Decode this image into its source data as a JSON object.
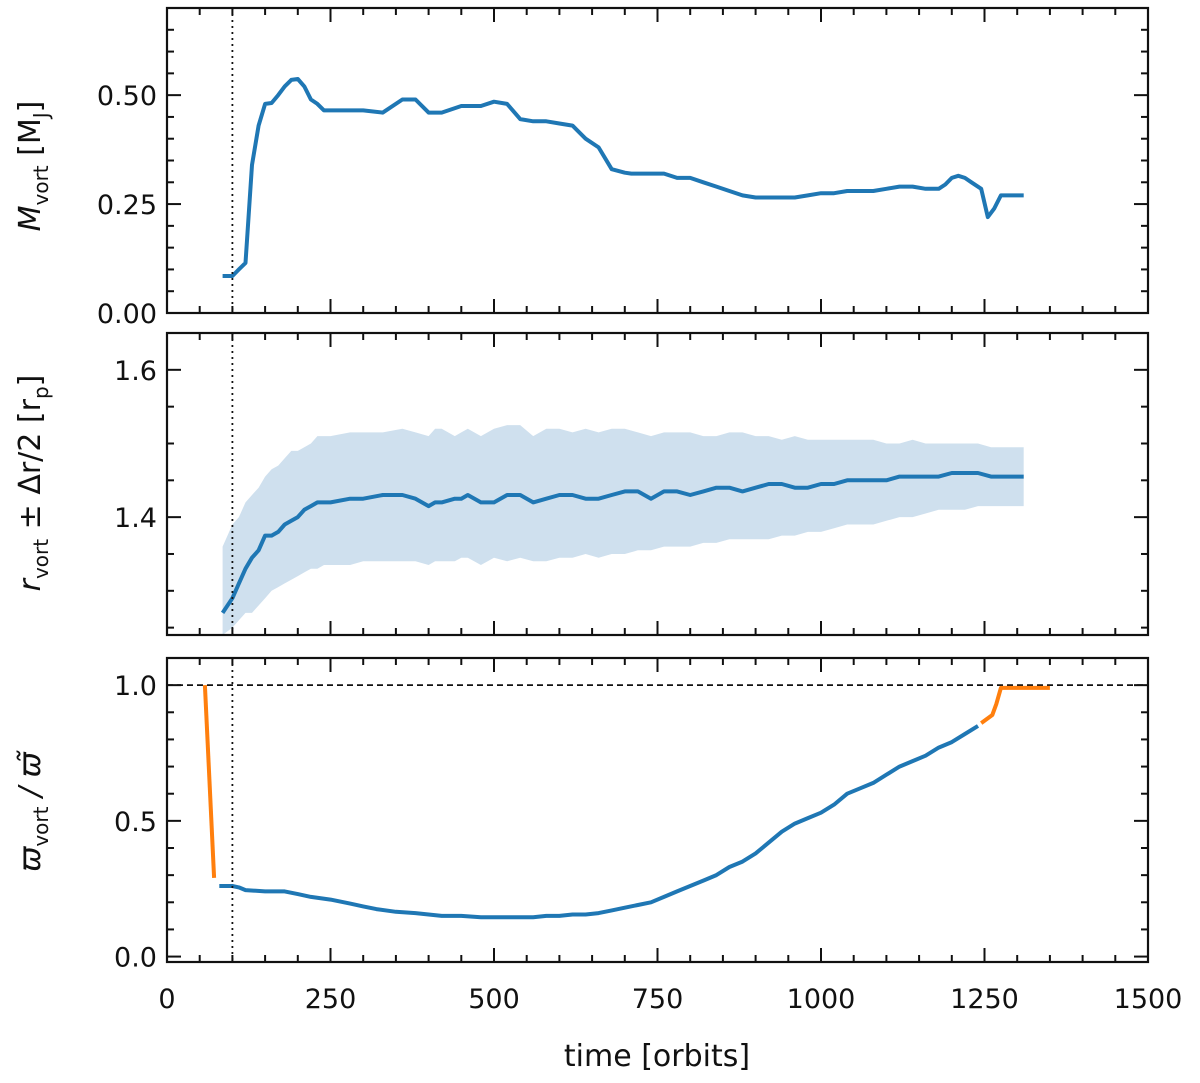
{
  "chart_data": [
    {
      "type": "line",
      "panel": "top",
      "ylabel_main": "M",
      "ylabel_sub": "vort",
      "ylabel_unit_open": "[M",
      "ylabel_unit_sub": "J",
      "ylabel_unit_close": "]",
      "xlim": [
        0,
        1500
      ],
      "ylim": [
        0,
        0.7
      ],
      "yticks": [
        0.0,
        0.25,
        0.5
      ],
      "ytick_labels": [
        "0.00",
        "0.25",
        "0.50"
      ],
      "vline_x": 100,
      "series": [
        {
          "name": "M_vort",
          "color": "#1f77b4",
          "x": [
            85,
            100,
            110,
            120,
            130,
            140,
            150,
            160,
            170,
            180,
            190,
            200,
            210,
            220,
            230,
            240,
            250,
            270,
            300,
            330,
            360,
            380,
            400,
            420,
            450,
            480,
            500,
            520,
            540,
            560,
            580,
            600,
            620,
            640,
            660,
            680,
            700,
            710,
            720,
            740,
            760,
            780,
            800,
            820,
            840,
            860,
            880,
            900,
            920,
            940,
            960,
            980,
            1000,
            1020,
            1040,
            1060,
            1080,
            1100,
            1120,
            1140,
            1160,
            1180,
            1190,
            1200,
            1210,
            1220,
            1230,
            1245,
            1255,
            1265,
            1275,
            1290,
            1310
          ],
          "values": [
            0.085,
            0.085,
            0.1,
            0.115,
            0.34,
            0.43,
            0.48,
            0.482,
            0.5,
            0.52,
            0.535,
            0.537,
            0.52,
            0.49,
            0.48,
            0.465,
            0.465,
            0.465,
            0.465,
            0.46,
            0.49,
            0.49,
            0.46,
            0.46,
            0.475,
            0.475,
            0.485,
            0.48,
            0.445,
            0.44,
            0.44,
            0.435,
            0.43,
            0.4,
            0.38,
            0.33,
            0.322,
            0.32,
            0.32,
            0.32,
            0.32,
            0.31,
            0.31,
            0.3,
            0.29,
            0.28,
            0.27,
            0.265,
            0.265,
            0.265,
            0.265,
            0.27,
            0.275,
            0.275,
            0.28,
            0.28,
            0.28,
            0.285,
            0.29,
            0.29,
            0.285,
            0.285,
            0.295,
            0.31,
            0.315,
            0.31,
            0.3,
            0.285,
            0.22,
            0.24,
            0.27,
            0.27,
            0.27
          ]
        }
      ]
    },
    {
      "type": "line",
      "panel": "middle",
      "ylabel_main": "r",
      "ylabel_sub": "vort",
      "ylabel_rest": " ± Δr/2 [r",
      "ylabel_unit_sub": "p",
      "ylabel_unit_close": "]",
      "xlim": [
        0,
        1500
      ],
      "ylim": [
        1.24,
        1.65
      ],
      "yticks": [
        1.4,
        1.6
      ],
      "ytick_labels": [
        "1.4",
        "1.6"
      ],
      "vline_x": 100,
      "series": [
        {
          "name": "r_vort",
          "color": "#1f77b4",
          "x": [
            85,
            100,
            110,
            120,
            130,
            140,
            150,
            160,
            170,
            180,
            190,
            200,
            210,
            220,
            230,
            240,
            250,
            280,
            300,
            330,
            360,
            380,
            400,
            410,
            420,
            440,
            450,
            460,
            480,
            500,
            520,
            540,
            560,
            580,
            600,
            620,
            640,
            660,
            680,
            700,
            720,
            740,
            760,
            780,
            800,
            820,
            840,
            860,
            880,
            900,
            920,
            940,
            960,
            980,
            1000,
            1020,
            1040,
            1060,
            1080,
            1100,
            1120,
            1140,
            1160,
            1180,
            1200,
            1220,
            1240,
            1260,
            1280,
            1310
          ],
          "values": [
            1.27,
            1.29,
            1.31,
            1.33,
            1.345,
            1.355,
            1.375,
            1.375,
            1.38,
            1.39,
            1.395,
            1.4,
            1.41,
            1.415,
            1.42,
            1.42,
            1.42,
            1.425,
            1.425,
            1.43,
            1.43,
            1.425,
            1.415,
            1.42,
            1.42,
            1.425,
            1.425,
            1.43,
            1.42,
            1.42,
            1.43,
            1.43,
            1.42,
            1.425,
            1.43,
            1.43,
            1.425,
            1.425,
            1.43,
            1.435,
            1.435,
            1.425,
            1.435,
            1.435,
            1.43,
            1.435,
            1.44,
            1.44,
            1.435,
            1.44,
            1.445,
            1.445,
            1.44,
            1.44,
            1.445,
            1.445,
            1.45,
            1.45,
            1.45,
            1.45,
            1.455,
            1.455,
            1.455,
            1.455,
            1.46,
            1.46,
            1.46,
            1.455,
            1.455,
            1.455
          ]
        }
      ],
      "band": {
        "name": "r_vort ± Δr/2",
        "color": "#cfe0ee",
        "x": [
          85,
          100,
          110,
          120,
          130,
          140,
          150,
          160,
          170,
          180,
          190,
          200,
          210,
          220,
          230,
          240,
          250,
          280,
          300,
          330,
          360,
          380,
          400,
          410,
          420,
          440,
          450,
          460,
          480,
          500,
          520,
          540,
          560,
          580,
          600,
          620,
          640,
          660,
          680,
          700,
          720,
          740,
          760,
          780,
          800,
          820,
          840,
          860,
          880,
          900,
          920,
          940,
          960,
          980,
          1000,
          1020,
          1040,
          1060,
          1080,
          1100,
          1120,
          1140,
          1160,
          1180,
          1200,
          1220,
          1240,
          1260,
          1280,
          1310
        ],
        "upper": [
          1.36,
          1.39,
          1.4,
          1.42,
          1.43,
          1.44,
          1.455,
          1.465,
          1.47,
          1.48,
          1.49,
          1.49,
          1.495,
          1.5,
          1.51,
          1.51,
          1.51,
          1.515,
          1.515,
          1.515,
          1.52,
          1.515,
          1.51,
          1.52,
          1.52,
          1.51,
          1.515,
          1.52,
          1.51,
          1.52,
          1.525,
          1.525,
          1.51,
          1.52,
          1.52,
          1.515,
          1.52,
          1.515,
          1.52,
          1.52,
          1.515,
          1.51,
          1.515,
          1.515,
          1.515,
          1.51,
          1.51,
          1.515,
          1.515,
          1.51,
          1.51,
          1.505,
          1.51,
          1.505,
          1.505,
          1.505,
          1.505,
          1.505,
          1.505,
          1.5,
          1.5,
          1.505,
          1.5,
          1.5,
          1.5,
          1.5,
          1.5,
          1.495,
          1.495,
          1.495
        ],
        "lower": [
          1.24,
          1.25,
          1.26,
          1.27,
          1.27,
          1.28,
          1.29,
          1.3,
          1.305,
          1.31,
          1.315,
          1.32,
          1.325,
          1.33,
          1.33,
          1.335,
          1.335,
          1.335,
          1.34,
          1.34,
          1.34,
          1.34,
          1.335,
          1.34,
          1.34,
          1.34,
          1.345,
          1.345,
          1.335,
          1.345,
          1.34,
          1.345,
          1.34,
          1.34,
          1.345,
          1.345,
          1.35,
          1.345,
          1.35,
          1.35,
          1.355,
          1.355,
          1.36,
          1.36,
          1.36,
          1.365,
          1.365,
          1.37,
          1.37,
          1.37,
          1.37,
          1.375,
          1.375,
          1.38,
          1.38,
          1.385,
          1.39,
          1.39,
          1.39,
          1.395,
          1.4,
          1.4,
          1.405,
          1.41,
          1.41,
          1.41,
          1.415,
          1.415,
          1.415,
          1.415
        ]
      }
    },
    {
      "type": "line",
      "panel": "bottom",
      "ylabel_main": "ϖ",
      "ylabel_sub": "vort",
      "ylabel_rest": " / ϖ̃",
      "xlabel": "time [orbits]",
      "xlim": [
        0,
        1500
      ],
      "xticks": [
        0,
        250,
        500,
        750,
        1000,
        1250,
        1500
      ],
      "xtick_labels": [
        "0",
        "250",
        "500",
        "750",
        "1000",
        "1250",
        "1500"
      ],
      "ylim": [
        -0.02,
        1.1
      ],
      "yticks": [
        0.0,
        0.5,
        1.0
      ],
      "ytick_labels": [
        "0.0",
        "0.5",
        "1.0"
      ],
      "vline_x": 100,
      "hline_y": 1.0,
      "series": [
        {
          "name": "ϖ_vort / ϖ̃ (blue)",
          "color": "#1f77b4",
          "x": [
            80,
            100,
            110,
            120,
            150,
            180,
            200,
            220,
            250,
            280,
            300,
            320,
            350,
            380,
            400,
            420,
            450,
            480,
            500,
            530,
            560,
            580,
            600,
            620,
            640,
            660,
            680,
            700,
            720,
            740,
            760,
            780,
            800,
            820,
            840,
            860,
            880,
            900,
            920,
            940,
            960,
            980,
            1000,
            1020,
            1040,
            1060,
            1080,
            1100,
            1120,
            1140,
            1160,
            1180,
            1200,
            1220,
            1240
          ],
          "values": [
            0.26,
            0.26,
            0.255,
            0.245,
            0.24,
            0.24,
            0.23,
            0.22,
            0.21,
            0.195,
            0.185,
            0.175,
            0.165,
            0.16,
            0.155,
            0.15,
            0.15,
            0.145,
            0.145,
            0.145,
            0.145,
            0.15,
            0.15,
            0.155,
            0.155,
            0.16,
            0.17,
            0.18,
            0.19,
            0.2,
            0.22,
            0.24,
            0.26,
            0.28,
            0.3,
            0.33,
            0.35,
            0.38,
            0.42,
            0.46,
            0.49,
            0.51,
            0.53,
            0.56,
            0.6,
            0.62,
            0.64,
            0.67,
            0.7,
            0.72,
            0.74,
            0.77,
            0.79,
            0.82,
            0.85
          ]
        },
        {
          "name": "ϖ_vort / ϖ̃ (orange)",
          "color": "#ff7f0e",
          "segments": [
            {
              "x": [
                58,
                72
              ],
              "values": [
                1.0,
                0.29
              ]
            },
            {
              "x": [
                1245,
                1262,
                1268,
                1275,
                1350
              ],
              "values": [
                0.86,
                0.89,
                0.93,
                0.99,
                0.99
              ]
            }
          ]
        }
      ]
    }
  ]
}
